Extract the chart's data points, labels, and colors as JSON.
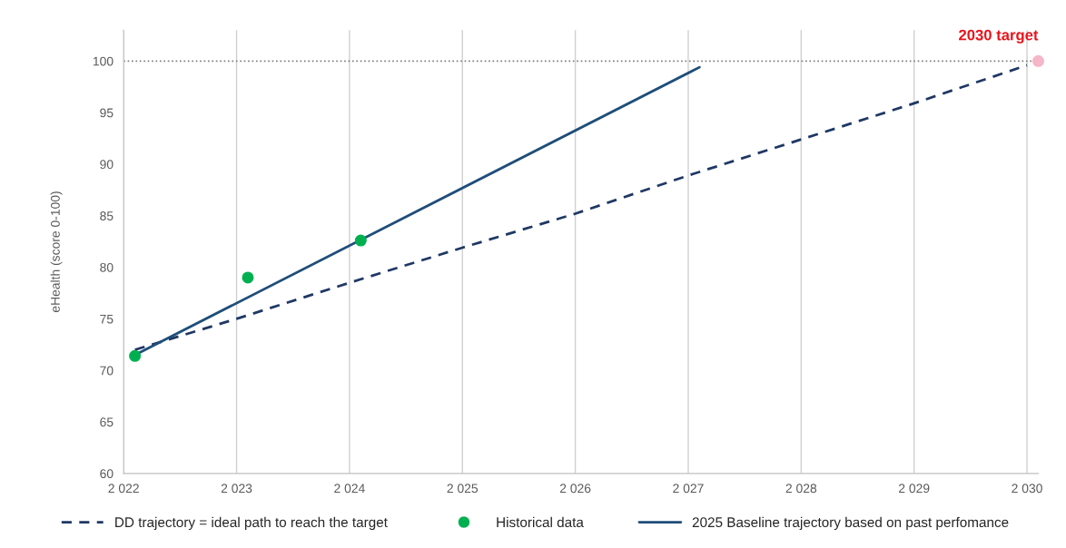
{
  "chart_data": {
    "type": "line",
    "ylabel": "eHealth (score 0-100)",
    "xlim": [
      2022,
      2030.1
    ],
    "ylim": [
      60,
      103
    ],
    "xticks": [
      {
        "value": 2022,
        "label": "2 022"
      },
      {
        "value": 2023,
        "label": "2 023"
      },
      {
        "value": 2024,
        "label": "2 024"
      },
      {
        "value": 2025,
        "label": "2 025"
      },
      {
        "value": 2026,
        "label": "2 026"
      },
      {
        "value": 2027,
        "label": "2 027"
      },
      {
        "value": 2028,
        "label": "2 028"
      },
      {
        "value": 2029,
        "label": "2 029"
      },
      {
        "value": 2030,
        "label": "2 030"
      }
    ],
    "yticks": [
      60,
      65,
      70,
      75,
      80,
      85,
      90,
      95,
      100
    ],
    "grid": "x",
    "legend": "bottom",
    "series": [
      {
        "name": "DD trajectory = ideal path to reach the target",
        "line_style": "dashed",
        "color": "#1f3864",
        "x": [
          2022.1,
          2023,
          2024,
          2025,
          2026,
          2027,
          2028,
          2029,
          2030
        ],
        "values": [
          72.0,
          75.0,
          78.5,
          81.9,
          85.2,
          88.9,
          92.4,
          95.9,
          99.6
        ]
      },
      {
        "name": "Historical data",
        "type": "scatter",
        "marker": "circle",
        "color": "#00b050",
        "x": [
          2022.1,
          2023.1,
          2024.1
        ],
        "values": [
          71.4,
          79.0,
          82.6
        ]
      },
      {
        "name": "2025 Baseline trajectory based on past perfomance",
        "line_style": "solid",
        "color": "#1f4e79",
        "x": [
          2022.1,
          2027.1
        ],
        "values": [
          71.5,
          99.4
        ]
      },
      {
        "type": "scatter",
        "marker": "circle",
        "color": "#f4b6c8",
        "x": [
          2030.1
        ],
        "values": [
          100
        ]
      }
    ],
    "ref_lines": [
      {
        "axis": "y",
        "value": 100,
        "color": "#808080",
        "line_style": "dotted"
      }
    ],
    "annotations": [
      {
        "text": "2030 target",
        "x": 2030.1,
        "y": 100
      }
    ]
  }
}
